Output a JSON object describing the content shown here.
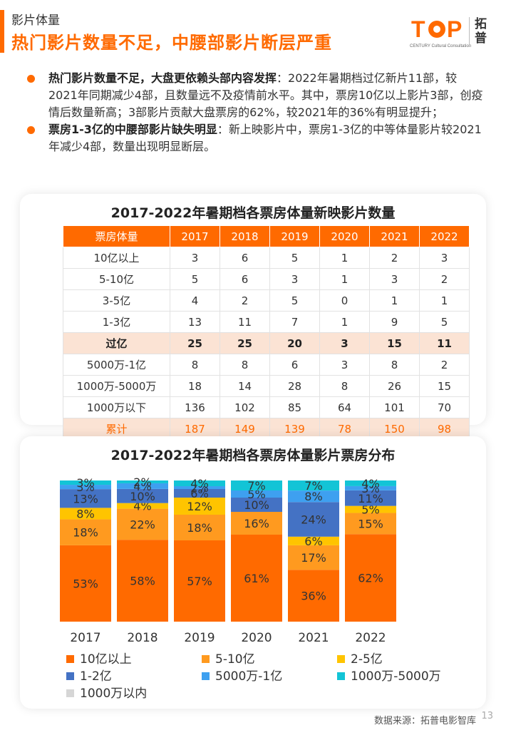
{
  "header": {
    "subtitle": "影片体量",
    "title": "热门影片数量不足，中腰部影片断层严重",
    "logo_text": "TOP",
    "logo_cn": "拓普",
    "logo_tagline": "CENTURY Cultural Consultation"
  },
  "bullets": [
    {
      "bold": "热门影片数量不足，大盘更依赖头部内容发挥",
      "text": "：2022年暑期档过亿新片11部，较2021年同期减少4部，且数量远不及疫情前水平。其中，票房10亿以上影片3部，创疫情后数量新高；3部影片贡献大盘票房的62%，较2021年的36%有明显提升；"
    },
    {
      "bold": "票房1-3亿的中腰部影片缺失明显",
      "text": "：新上映影片中，票房1-3亿的中等体量影片较2021年减少4部，数量出现明显断层。"
    }
  ],
  "table": {
    "title": "2017-2022年暑期档各票房体量新映影片数量",
    "headers": [
      "票房体量",
      "2017",
      "2018",
      "2019",
      "2020",
      "2021",
      "2022"
    ],
    "rows": [
      {
        "label": "10亿以上",
        "values": [
          "3",
          "6",
          "5",
          "1",
          "2",
          "3"
        ],
        "style": ""
      },
      {
        "label": "5-10亿",
        "values": [
          "5",
          "6",
          "3",
          "1",
          "3",
          "2"
        ],
        "style": ""
      },
      {
        "label": "3-5亿",
        "values": [
          "4",
          "2",
          "5",
          "0",
          "1",
          "1"
        ],
        "style": ""
      },
      {
        "label": "1-3亿",
        "values": [
          "13",
          "11",
          "7",
          "1",
          "9",
          "5"
        ],
        "style": ""
      },
      {
        "label": "过亿",
        "values": [
          "25",
          "25",
          "20",
          "3",
          "15",
          "11"
        ],
        "style": "hl"
      },
      {
        "label": "5000万-1亿",
        "values": [
          "8",
          "8",
          "6",
          "3",
          "8",
          "2"
        ],
        "style": ""
      },
      {
        "label": "1000万-5000万",
        "values": [
          "18",
          "14",
          "28",
          "8",
          "26",
          "15"
        ],
        "style": ""
      },
      {
        "label": "1000万以下",
        "values": [
          "136",
          "102",
          "85",
          "64",
          "101",
          "70"
        ],
        "style": ""
      },
      {
        "label": "累计",
        "values": [
          "187",
          "149",
          "139",
          "78",
          "150",
          "98"
        ],
        "style": "sum"
      }
    ]
  },
  "chart_data": {
    "type": "bar",
    "stacked": true,
    "percent": true,
    "title": "2017-2022年暑期档各票房体量影片票房分布",
    "categories": [
      "2017",
      "2018",
      "2019",
      "2020",
      "2021",
      "2022"
    ],
    "series": [
      {
        "name": "10亿以上",
        "color": "#ff6a00",
        "values": [
          53,
          58,
          57,
          61,
          36,
          62
        ]
      },
      {
        "name": "5-10亿",
        "color": "#ff9a1f",
        "values": [
          18,
          22,
          18,
          16,
          17,
          15
        ]
      },
      {
        "name": "2-5亿",
        "color": "#ffc400",
        "values": [
          8,
          4,
          12,
          0,
          6,
          5
        ]
      },
      {
        "name": "1-2亿",
        "color": "#4472c4",
        "values": [
          13,
          10,
          6,
          10,
          24,
          11
        ]
      },
      {
        "name": "5000万-1亿",
        "color": "#3ea0f0",
        "values": [
          3,
          4,
          2,
          5,
          8,
          3
        ]
      },
      {
        "name": "1000万-5000万",
        "color": "#13c4d6",
        "values": [
          3,
          2,
          4,
          7,
          7,
          4
        ]
      },
      {
        "name": "1000万以内",
        "color": "#d6d6d6",
        "values": [
          0,
          0,
          0,
          0,
          0,
          0
        ]
      }
    ],
    "ylim": [
      0,
      100
    ],
    "legend_position": "bottom"
  },
  "source": "数据来源：拓普电影智库",
  "page_number": "13"
}
